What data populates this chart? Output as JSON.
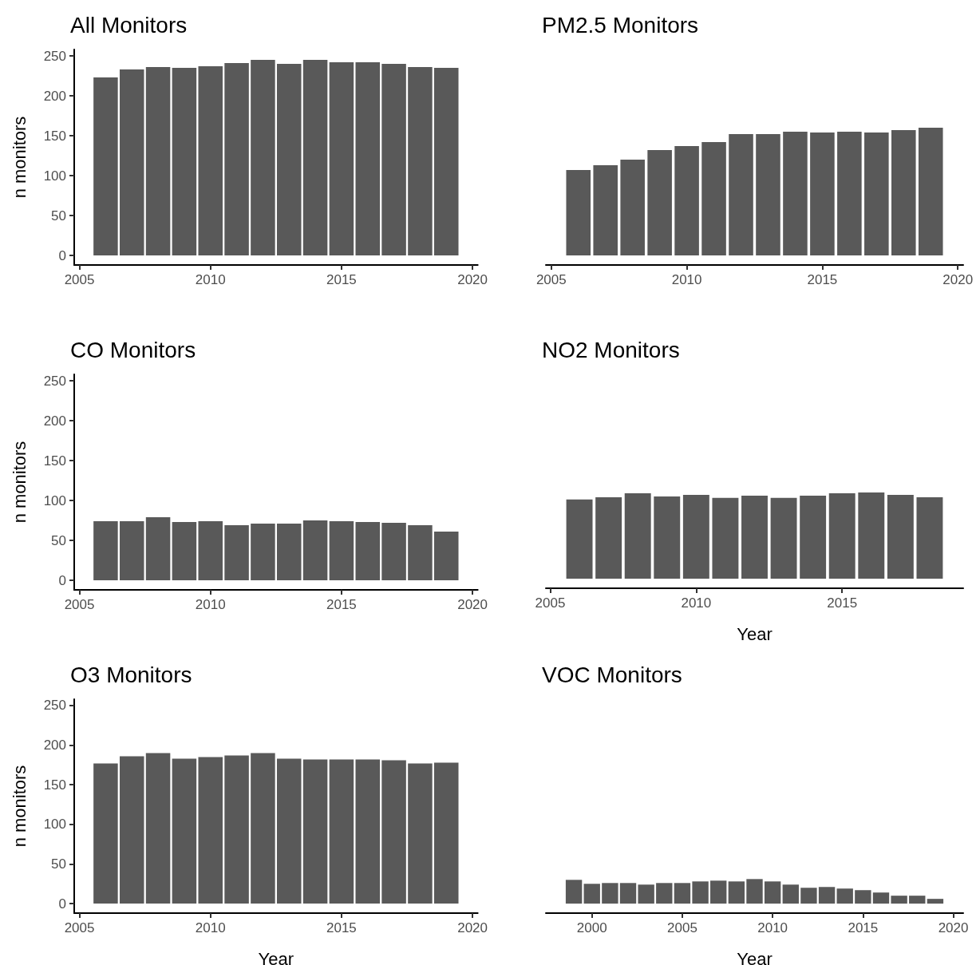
{
  "chart_data": [
    {
      "type": "bar",
      "title": "All Monitors",
      "ylabel": "n monitors",
      "x": [
        2006,
        2007,
        2008,
        2009,
        2010,
        2011,
        2012,
        2013,
        2014,
        2015,
        2016,
        2017,
        2018,
        2019
      ],
      "values": [
        223,
        233,
        236,
        235,
        237,
        241,
        245,
        240,
        245,
        242,
        242,
        240,
        236,
        235
      ],
      "color": "#595959",
      "xlim": [
        2004.8,
        2020.2
      ],
      "xticks": [
        2005,
        2010,
        2015,
        2020
      ],
      "ylim": [
        -12,
        258
      ],
      "yticks": [
        0,
        50,
        100,
        150,
        200,
        250
      ],
      "grid": false
    },
    {
      "type": "bar",
      "title": "PM2.5 Monitors",
      "x": [
        2006,
        2007,
        2008,
        2009,
        2010,
        2011,
        2012,
        2013,
        2014,
        2015,
        2016,
        2017,
        2018,
        2019
      ],
      "values": [
        107,
        113,
        120,
        132,
        137,
        142,
        152,
        152,
        155,
        154,
        155,
        154,
        157,
        160
      ],
      "color": "#595959",
      "xlim": [
        2004.8,
        2020.2
      ],
      "xticks": [
        2005,
        2010,
        2015,
        2020
      ],
      "ylim": [
        -12,
        250
      ],
      "yticks": [
        0,
        50,
        100,
        150,
        200,
        250
      ],
      "tick_labels": "x",
      "grid": false
    },
    {
      "type": "bar",
      "title": "CO Monitors",
      "ylabel": "n monitors",
      "x": [
        2006,
        2007,
        2008,
        2009,
        2010,
        2011,
        2012,
        2013,
        2014,
        2015,
        2016,
        2017,
        2018,
        2019
      ],
      "values": [
        74,
        74,
        79,
        73,
        74,
        69,
        71,
        71,
        75,
        74,
        73,
        72,
        69,
        61
      ],
      "color": "#595959",
      "xlim": [
        2004.8,
        2020.2
      ],
      "xticks": [
        2005,
        2010,
        2015,
        2020
      ],
      "ylim": [
        -12,
        258
      ],
      "yticks": [
        0,
        50,
        100,
        150,
        200,
        250
      ],
      "grid": false
    },
    {
      "type": "bar",
      "title": "NO2 Monitors",
      "xlabel": "Year",
      "x": [
        2006,
        2007,
        2008,
        2009,
        2010,
        2011,
        2012,
        2013,
        2014,
        2015,
        2016,
        2017,
        2018
      ],
      "values": [
        100,
        103,
        108,
        104,
        106,
        102,
        105,
        102,
        105,
        108,
        109,
        106,
        103
      ],
      "color": "#595959",
      "xlim": [
        2004.85,
        2019.15
      ],
      "xticks": [
        2005,
        2010,
        2015
      ],
      "ylim": [
        -12,
        250
      ],
      "yticks": [
        0,
        50,
        100,
        150,
        200,
        250
      ],
      "tick_labels": "x",
      "grid": false
    },
    {
      "type": "bar",
      "title": "O3 Monitors",
      "xlabel": "Year",
      "ylabel": "n monitors",
      "x": [
        2006,
        2007,
        2008,
        2009,
        2010,
        2011,
        2012,
        2013,
        2014,
        2015,
        2016,
        2017,
        2018,
        2019
      ],
      "values": [
        177,
        186,
        190,
        183,
        185,
        187,
        190,
        183,
        182,
        182,
        182,
        181,
        177,
        178
      ],
      "color": "#595959",
      "xlim": [
        2004.8,
        2020.2
      ],
      "xticks": [
        2005,
        2010,
        2015,
        2020
      ],
      "ylim": [
        -12,
        258
      ],
      "yticks": [
        0,
        50,
        100,
        150,
        200,
        250
      ],
      "grid": false
    },
    {
      "type": "bar",
      "title": "VOC Monitors",
      "xlabel": "Year",
      "x": [
        1999,
        2000,
        2001,
        2002,
        2003,
        2004,
        2005,
        2006,
        2007,
        2008,
        2009,
        2010,
        2011,
        2012,
        2013,
        2014,
        2015,
        2016,
        2017,
        2018,
        2019
      ],
      "values": [
        30,
        25,
        26,
        26,
        24,
        26,
        26,
        28,
        29,
        28,
        31,
        28,
        24,
        20,
        21,
        19,
        17,
        14,
        10,
        10,
        6
      ],
      "color": "#595959",
      "xlim": [
        1997.45,
        2020.55
      ],
      "xticks": [
        2000,
        2005,
        2010,
        2015,
        2020
      ],
      "ylim": [
        -12,
        250
      ],
      "yticks": [
        0,
        50,
        100,
        150,
        200,
        250
      ],
      "tick_labels": "x",
      "grid": false
    }
  ]
}
